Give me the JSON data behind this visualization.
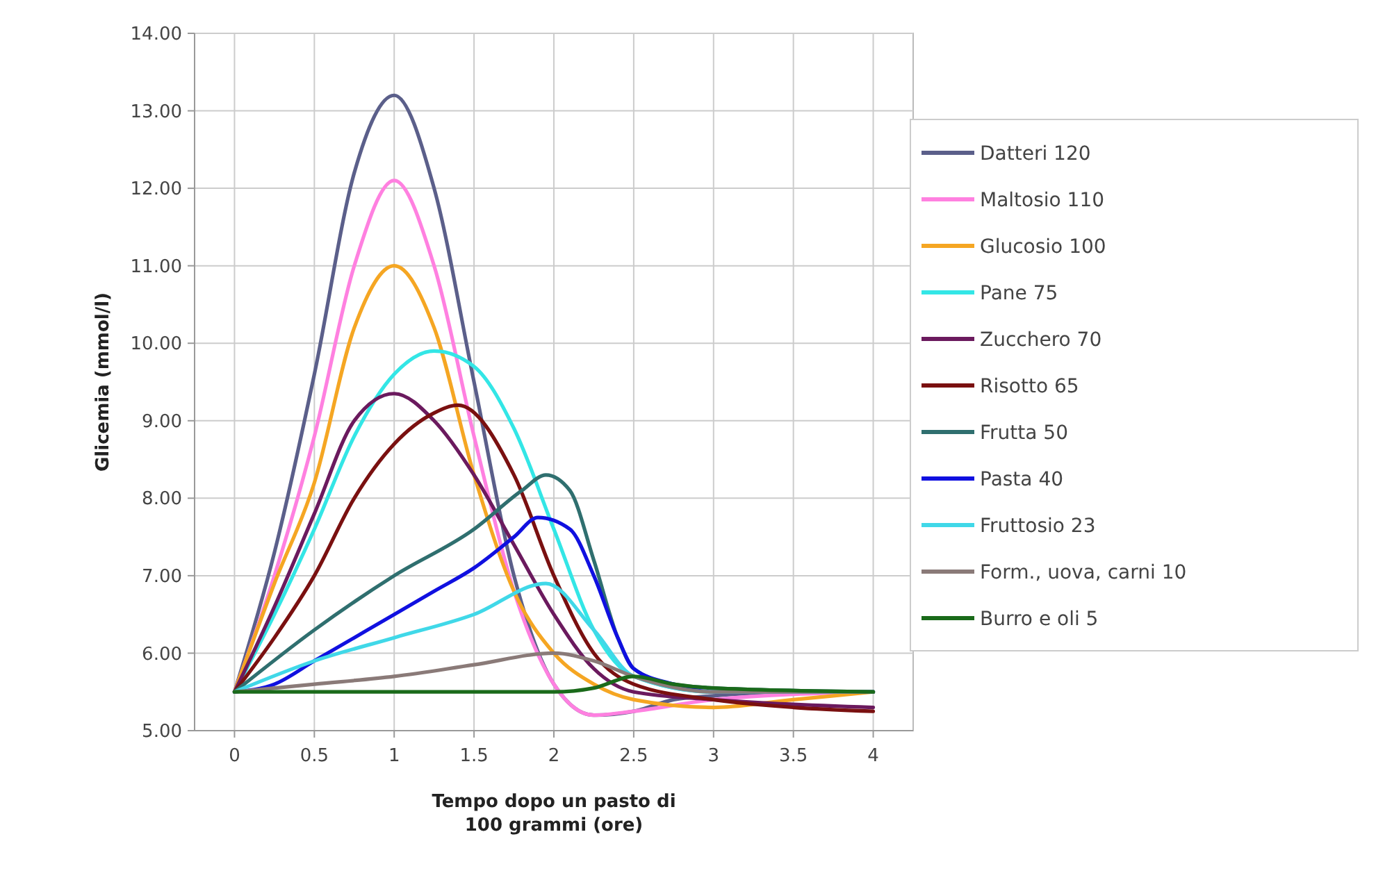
{
  "chart_data": {
    "type": "line",
    "xlabel": "Tempo dopo un pasto di 100 grammi (ore)",
    "ylabel": "Glicemia (mmol/l)",
    "xlim": [
      -0.25,
      4.25
    ],
    "ylim": [
      5,
      14
    ],
    "xticks": [
      0,
      0.5,
      1,
      1.5,
      2,
      2.5,
      3,
      3.5,
      4
    ],
    "yticks": [
      {
        "value": 5,
        "label": "5.00"
      },
      {
        "value": 6,
        "label": "6.00"
      },
      {
        "value": 7,
        "label": "7.00"
      },
      {
        "value": 8,
        "label": "8.00"
      },
      {
        "value": 9,
        "label": "9.00"
      },
      {
        "value": 10,
        "label": "10.00"
      },
      {
        "value": 11,
        "label": "11.00"
      },
      {
        "value": 12,
        "label": "12.00"
      },
      {
        "value": 13,
        "label": "13.00"
      },
      {
        "value": 14,
        "label": "14.00"
      }
    ],
    "grid": true,
    "legend": "right",
    "marker": "none",
    "line_style": "solid",
    "series": [
      {
        "name": "Datteri 120",
        "color": "#5b5f8a",
        "x": [
          0,
          0.25,
          0.5,
          0.75,
          1,
          1.25,
          1.5,
          1.75,
          2,
          2.25,
          2.5,
          2.75,
          3,
          3.5,
          4
        ],
        "values": [
          5.5,
          7.3,
          9.6,
          12.2,
          13.2,
          12.0,
          9.5,
          7.0,
          5.6,
          5.2,
          5.25,
          5.4,
          5.45,
          5.5,
          5.5
        ]
      },
      {
        "name": "Maltosio 110",
        "color": "#ff80e0",
        "x": [
          0,
          0.25,
          0.5,
          0.75,
          1,
          1.25,
          1.5,
          1.75,
          2,
          2.25,
          2.5,
          3,
          4
        ],
        "values": [
          5.5,
          7.0,
          8.8,
          11.0,
          12.1,
          11.0,
          8.8,
          6.8,
          5.6,
          5.2,
          5.25,
          5.4,
          5.5
        ]
      },
      {
        "name": "Glucosio 100",
        "color": "#f5a623",
        "x": [
          0,
          0.25,
          0.5,
          0.75,
          1,
          1.25,
          1.5,
          1.75,
          2,
          2.25,
          2.5,
          3,
          3.5,
          4
        ],
        "values": [
          5.5,
          6.9,
          8.2,
          10.2,
          11.0,
          10.2,
          8.3,
          6.8,
          6.0,
          5.6,
          5.4,
          5.3,
          5.4,
          5.5
        ]
      },
      {
        "name": "Pane 75",
        "color": "#33e6e6",
        "x": [
          0,
          0.25,
          0.5,
          0.75,
          1,
          1.25,
          1.5,
          1.75,
          2,
          2.25,
          2.5,
          3,
          4
        ],
        "values": [
          5.5,
          6.5,
          7.6,
          8.8,
          9.6,
          9.9,
          9.7,
          8.9,
          7.6,
          6.3,
          5.7,
          5.5,
          5.5
        ]
      },
      {
        "name": "Zucchero 70",
        "color": "#6b1a5e",
        "x": [
          0,
          0.25,
          0.5,
          0.75,
          1,
          1.25,
          1.5,
          1.75,
          2,
          2.25,
          2.5,
          3,
          4
        ],
        "values": [
          5.5,
          6.6,
          7.8,
          9.0,
          9.35,
          9.0,
          8.3,
          7.4,
          6.5,
          5.8,
          5.5,
          5.4,
          5.3
        ]
      },
      {
        "name": "Risotto 65",
        "color": "#7a1010",
        "x": [
          0,
          0.25,
          0.5,
          0.75,
          1,
          1.25,
          1.4,
          1.75,
          2,
          2.25,
          2.5,
          3,
          3.5,
          4
        ],
        "values": [
          5.5,
          6.2,
          7.0,
          8.0,
          8.7,
          9.1,
          9.2,
          8.3,
          7.0,
          6.0,
          5.6,
          5.4,
          5.3,
          5.25
        ]
      },
      {
        "name": "Frutta 50",
        "color": "#2f6f6f",
        "x": [
          0,
          0.5,
          1,
          1.5,
          1.8,
          1.95,
          2.1,
          2.25,
          2.4,
          2.5,
          2.75,
          3,
          4
        ],
        "values": [
          5.5,
          6.3,
          7.0,
          7.6,
          8.1,
          8.3,
          8.1,
          7.2,
          6.2,
          5.8,
          5.6,
          5.55,
          5.5
        ]
      },
      {
        "name": "Pasta 40",
        "color": "#1010e0",
        "x": [
          0,
          0.25,
          0.5,
          0.75,
          1,
          1.25,
          1.5,
          1.75,
          1.9,
          2.1,
          2.25,
          2.4,
          2.5,
          2.75,
          3,
          4
        ],
        "values": [
          5.5,
          5.6,
          5.9,
          6.2,
          6.5,
          6.8,
          7.1,
          7.5,
          7.75,
          7.6,
          7.0,
          6.2,
          5.8,
          5.6,
          5.5,
          5.5
        ]
      },
      {
        "name": "Fruttosio 23",
        "color": "#40d8e8",
        "x": [
          0,
          0.5,
          1,
          1.5,
          1.95,
          2.25,
          2.5,
          3,
          4
        ],
        "values": [
          5.5,
          5.9,
          6.2,
          6.5,
          6.9,
          6.3,
          5.7,
          5.5,
          5.5
        ]
      },
      {
        "name": "Form., uova, carni 10",
        "color": "#8a7a78",
        "x": [
          0,
          0.5,
          1,
          1.5,
          2,
          2.25,
          2.5,
          3,
          4
        ],
        "values": [
          5.5,
          5.6,
          5.7,
          5.85,
          6.0,
          5.9,
          5.7,
          5.5,
          5.5
        ]
      },
      {
        "name": "Burro e oli 5",
        "color": "#1a6a1a",
        "x": [
          0,
          1,
          2,
          2.25,
          2.5,
          2.75,
          3,
          4
        ],
        "values": [
          5.5,
          5.5,
          5.5,
          5.55,
          5.7,
          5.6,
          5.55,
          5.5
        ]
      }
    ]
  }
}
